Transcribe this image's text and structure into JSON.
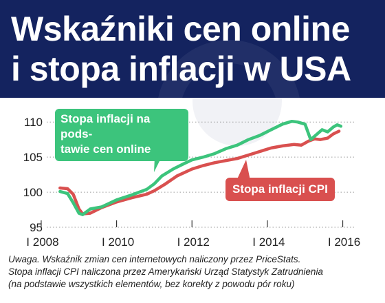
{
  "header": {
    "title_line1": "Wskaźniki cen online",
    "title_line2": "i stopa inflacji w USA"
  },
  "chart_data": {
    "type": "line",
    "x_tick_labels": [
      "I 2008",
      "I 2010",
      "I 2012",
      "I 2014",
      "I 2016"
    ],
    "x_ticks": [
      2008,
      2010,
      2012,
      2014,
      2016
    ],
    "xlim": [
      2007.6,
      2016.3
    ],
    "y_ticks": [
      95,
      100,
      105,
      110
    ],
    "ylim": [
      95,
      111.2
    ],
    "grid": "horizontal dotted",
    "series": [
      {
        "name": "Stopa inflacji na podstawie cen online",
        "color": "#3cc47c",
        "x": [
          2008.5,
          2008.7,
          2008.85,
          2009.0,
          2009.1,
          2009.3,
          2009.6,
          2010.0,
          2010.4,
          2010.8,
          2011.0,
          2011.2,
          2011.5,
          2011.8,
          2012.0,
          2012.3,
          2012.6,
          2012.9,
          2013.2,
          2013.5,
          2013.8,
          2014.1,
          2014.4,
          2014.65,
          2014.8,
          2015.0,
          2015.15,
          2015.3,
          2015.45,
          2015.6,
          2015.75,
          2015.85,
          2015.95
        ],
        "y": [
          100.1,
          99.8,
          98.5,
          97.0,
          96.8,
          97.6,
          97.9,
          98.9,
          99.6,
          100.4,
          101.2,
          102.3,
          103.3,
          104.1,
          104.6,
          105.0,
          105.5,
          106.2,
          106.7,
          107.5,
          108.1,
          108.9,
          109.7,
          110.1,
          110.0,
          109.7,
          107.5,
          108.2,
          108.9,
          108.6,
          109.3,
          109.6,
          109.4
        ]
      },
      {
        "name": "Stopa inflacji CPI",
        "color": "#d9504f",
        "x": [
          2008.5,
          2008.7,
          2008.85,
          2009.0,
          2009.1,
          2009.3,
          2009.6,
          2010.0,
          2010.4,
          2010.8,
          2011.0,
          2011.3,
          2011.6,
          2012.0,
          2012.3,
          2012.6,
          2012.9,
          2013.2,
          2013.5,
          2013.8,
          2014.1,
          2014.4,
          2014.7,
          2014.9,
          2015.1,
          2015.25,
          2015.4,
          2015.6,
          2015.75,
          2015.9
        ],
        "y": [
          100.6,
          100.5,
          99.7,
          97.6,
          96.9,
          97.0,
          97.8,
          98.6,
          99.2,
          99.7,
          100.2,
          101.2,
          102.3,
          103.3,
          103.8,
          104.2,
          104.5,
          104.8,
          105.3,
          105.8,
          106.3,
          106.6,
          106.8,
          106.7,
          107.3,
          107.6,
          107.5,
          107.7,
          108.3,
          108.7
        ]
      }
    ]
  },
  "callouts": {
    "online_line1": "Stopa inflacji na pods-",
    "online_line2": "tawie cen online",
    "cpi": "Stopa inflacji CPI"
  },
  "note": {
    "line1": "Uwaga. Wskaźnik zmian cen internetowych naliczony przez PriceStats.",
    "line2": "Stopa inflacji CPI naliczona przez Amerykański Urząd Statystyk Zatrudnienia",
    "line3": "(na podstawie wszystkich elementów, bez korekty z powodu pór roku)"
  }
}
